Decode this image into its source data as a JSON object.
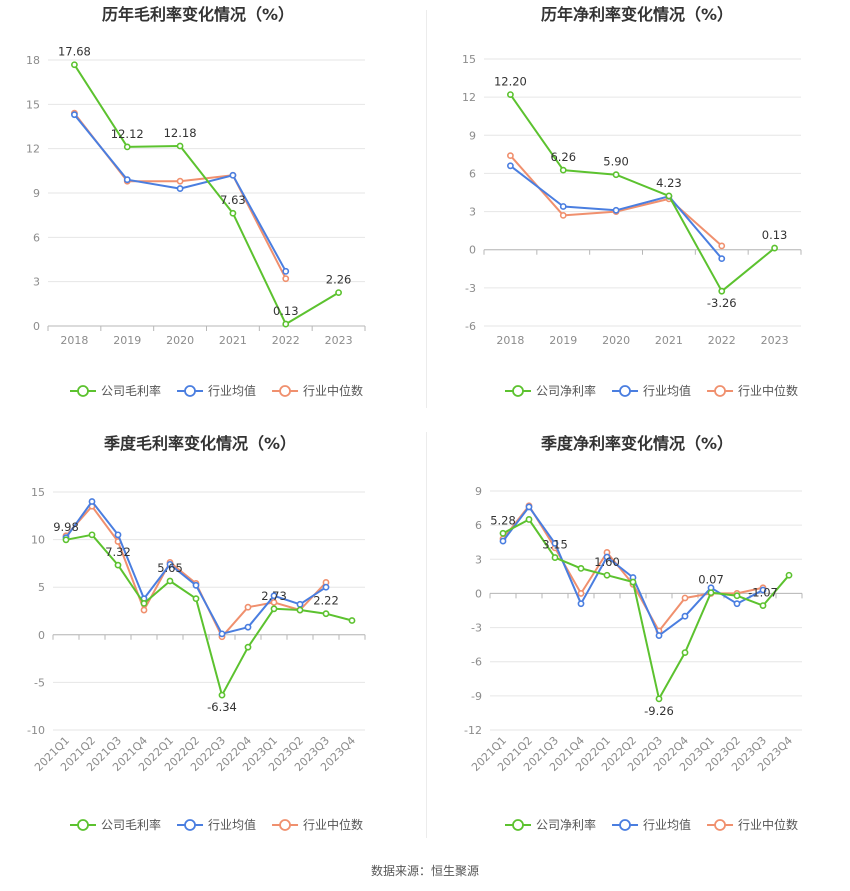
{
  "colors": {
    "company": "#5cc22f",
    "avg": "#4a7ee0",
    "median": "#f0906e",
    "grid": "#e6e6e6",
    "axis": "#b7b7b7"
  },
  "footer": "数据来源：恒生聚源",
  "chart_data": [
    {
      "type": "line",
      "title": "历年毛利率变化情况（%）",
      "x": [
        "2018",
        "2019",
        "2020",
        "2021",
        "2022",
        "2023"
      ],
      "yticks": [
        0,
        3,
        6,
        9,
        12,
        15,
        18
      ],
      "ylim": [
        0,
        18
      ],
      "grid": true,
      "legend_position": "bottom",
      "series": [
        {
          "name": "公司毛利率",
          "values": [
            17.68,
            12.12,
            12.18,
            7.63,
            0.13,
            2.26
          ],
          "labels": [
            "17.68",
            "12.12",
            "12.18",
            "7.63",
            "0.13",
            "2.26"
          ]
        },
        {
          "name": "行业均值",
          "values": [
            14.3,
            9.9,
            9.3,
            10.2,
            3.7,
            null
          ]
        },
        {
          "name": "行业中位数",
          "values": [
            14.4,
            9.8,
            9.8,
            10.2,
            3.2,
            null
          ]
        }
      ]
    },
    {
      "type": "line",
      "title": "历年净利率变化情况（%）",
      "x": [
        "2018",
        "2019",
        "2020",
        "2021",
        "2022",
        "2023"
      ],
      "yticks": [
        -6,
        -3,
        0,
        3,
        6,
        9,
        12,
        15
      ],
      "ylim": [
        -6,
        15
      ],
      "grid": true,
      "legend_position": "bottom",
      "series": [
        {
          "name": "公司净利率",
          "values": [
            12.2,
            6.26,
            5.9,
            4.23,
            -3.26,
            0.13
          ],
          "labels": [
            "12.20",
            "6.26",
            "5.90",
            "4.23",
            "-3.26",
            "0.13"
          ]
        },
        {
          "name": "行业均值",
          "values": [
            6.6,
            3.4,
            3.1,
            4.2,
            -0.7,
            null
          ]
        },
        {
          "name": "行业中位数",
          "values": [
            7.4,
            2.7,
            3.0,
            4.0,
            0.3,
            null
          ]
        }
      ]
    },
    {
      "type": "line",
      "title": "季度毛利率变化情况（%）",
      "x": [
        "2021Q1",
        "2021Q2",
        "2021Q3",
        "2021Q4",
        "2022Q1",
        "2022Q2",
        "2022Q3",
        "2022Q4",
        "2023Q1",
        "2023Q2",
        "2023Q3",
        "2023Q4"
      ],
      "yticks": [
        -10,
        -5,
        0,
        5,
        10,
        15
      ],
      "ylim": [
        -10,
        15
      ],
      "grid": true,
      "legend_position": "bottom",
      "series": [
        {
          "name": "公司毛利率",
          "values": [
            9.98,
            10.5,
            7.32,
            3.3,
            5.65,
            3.8,
            -6.34,
            -1.3,
            2.73,
            2.6,
            2.22,
            1.5
          ],
          "labels": [
            "9.98",
            "",
            "7.32",
            "",
            "5.65",
            "",
            "-6.34",
            "",
            "2.73",
            "",
            "2.22",
            ""
          ]
        },
        {
          "name": "行业均值",
          "values": [
            10.2,
            14.0,
            10.5,
            3.8,
            7.4,
            5.2,
            0.1,
            0.8,
            4.1,
            3.2,
            5.0,
            null
          ]
        },
        {
          "name": "行业中位数",
          "values": [
            10.4,
            13.5,
            9.8,
            2.6,
            7.6,
            5.4,
            -0.2,
            2.9,
            3.4,
            2.6,
            5.5,
            null
          ]
        }
      ]
    },
    {
      "type": "line",
      "title": "季度净利率变化情况（%）",
      "x": [
        "2021Q1",
        "2021Q2",
        "2021Q3",
        "2021Q4",
        "2022Q1",
        "2022Q2",
        "2022Q3",
        "2022Q4",
        "2023Q1",
        "2023Q2",
        "2023Q3",
        "2023Q4"
      ],
      "yticks": [
        -12,
        -9,
        -6,
        -3,
        0,
        3,
        6,
        9
      ],
      "ylim": [
        -12,
        9
      ],
      "grid": true,
      "legend_position": "bottom",
      "series": [
        {
          "name": "公司净利率",
          "values": [
            5.28,
            6.5,
            3.15,
            2.2,
            1.6,
            1.0,
            -9.26,
            -5.2,
            0.07,
            -0.2,
            -1.07,
            1.6
          ],
          "labels": [
            "5.28",
            "",
            "3.15",
            "",
            "1.60",
            "",
            "-9.26",
            "",
            "0.07",
            "",
            "-1.07",
            ""
          ]
        },
        {
          "name": "行业均值",
          "values": [
            4.6,
            7.6,
            4.4,
            -0.9,
            3.2,
            1.4,
            -3.7,
            -2.0,
            0.5,
            -0.9,
            0.3,
            null
          ]
        },
        {
          "name": "行业中位数",
          "values": [
            4.8,
            7.7,
            4.0,
            0.0,
            3.6,
            0.8,
            -3.3,
            -0.4,
            0.0,
            0.0,
            0.5,
            null
          ]
        }
      ]
    }
  ]
}
